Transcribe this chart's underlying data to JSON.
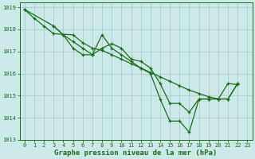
{
  "background_color": "#cce8e8",
  "grid_color": "#aacccc",
  "line_color": "#1a6e1a",
  "xlabel": "Graphe pression niveau de la mer (hPa)",
  "xlabel_fontsize": 6.5,
  "tick_fontsize": 5.0,
  "xlim": [
    -0.5,
    23.5
  ],
  "ylim": [
    1013.0,
    1019.2
  ],
  "yticks": [
    1013,
    1014,
    1015,
    1016,
    1017,
    1018,
    1019
  ],
  "xticks": [
    0,
    1,
    2,
    3,
    4,
    5,
    6,
    7,
    8,
    9,
    10,
    11,
    12,
    13,
    14,
    15,
    16,
    17,
    18,
    19,
    20,
    21,
    22,
    23
  ],
  "series1_x": [
    0,
    1,
    2,
    3,
    5,
    6,
    7,
    8,
    9,
    10,
    11,
    12,
    13,
    14,
    15,
    16,
    17,
    18,
    19,
    20,
    21,
    22
  ],
  "series1_y": [
    1018.9,
    1018.5,
    1018.15,
    1017.8,
    1017.75,
    1017.4,
    1017.15,
    1017.05,
    1016.85,
    1016.65,
    1016.45,
    1016.25,
    1016.05,
    1015.85,
    1015.65,
    1015.45,
    1015.25,
    1015.1,
    1014.95,
    1014.85,
    1015.55,
    1015.5
  ],
  "series2_x": [
    0,
    3,
    4,
    5,
    6,
    7,
    8,
    9,
    10,
    11,
    12,
    13,
    14,
    15,
    16,
    17,
    18,
    19,
    20,
    21,
    22
  ],
  "series2_y": [
    1018.9,
    1018.15,
    1017.75,
    1017.15,
    1016.85,
    1016.85,
    1017.75,
    1017.15,
    1016.85,
    1016.55,
    1016.25,
    1016.0,
    1014.85,
    1013.85,
    1013.85,
    1013.35,
    1014.85,
    1014.85,
    1014.85,
    1014.85,
    1015.55
  ],
  "series3_x": [
    3,
    4,
    5,
    6,
    7,
    8,
    9,
    10,
    11,
    12,
    13,
    14,
    15,
    16,
    17,
    18,
    19,
    20,
    21,
    22
  ],
  "series3_y": [
    1018.15,
    1017.75,
    1017.45,
    1017.15,
    1016.85,
    1017.15,
    1017.35,
    1017.15,
    1016.65,
    1016.55,
    1016.25,
    1015.55,
    1014.65,
    1014.65,
    1014.25,
    1014.85,
    1014.85,
    1014.85,
    1014.85,
    1015.55
  ]
}
